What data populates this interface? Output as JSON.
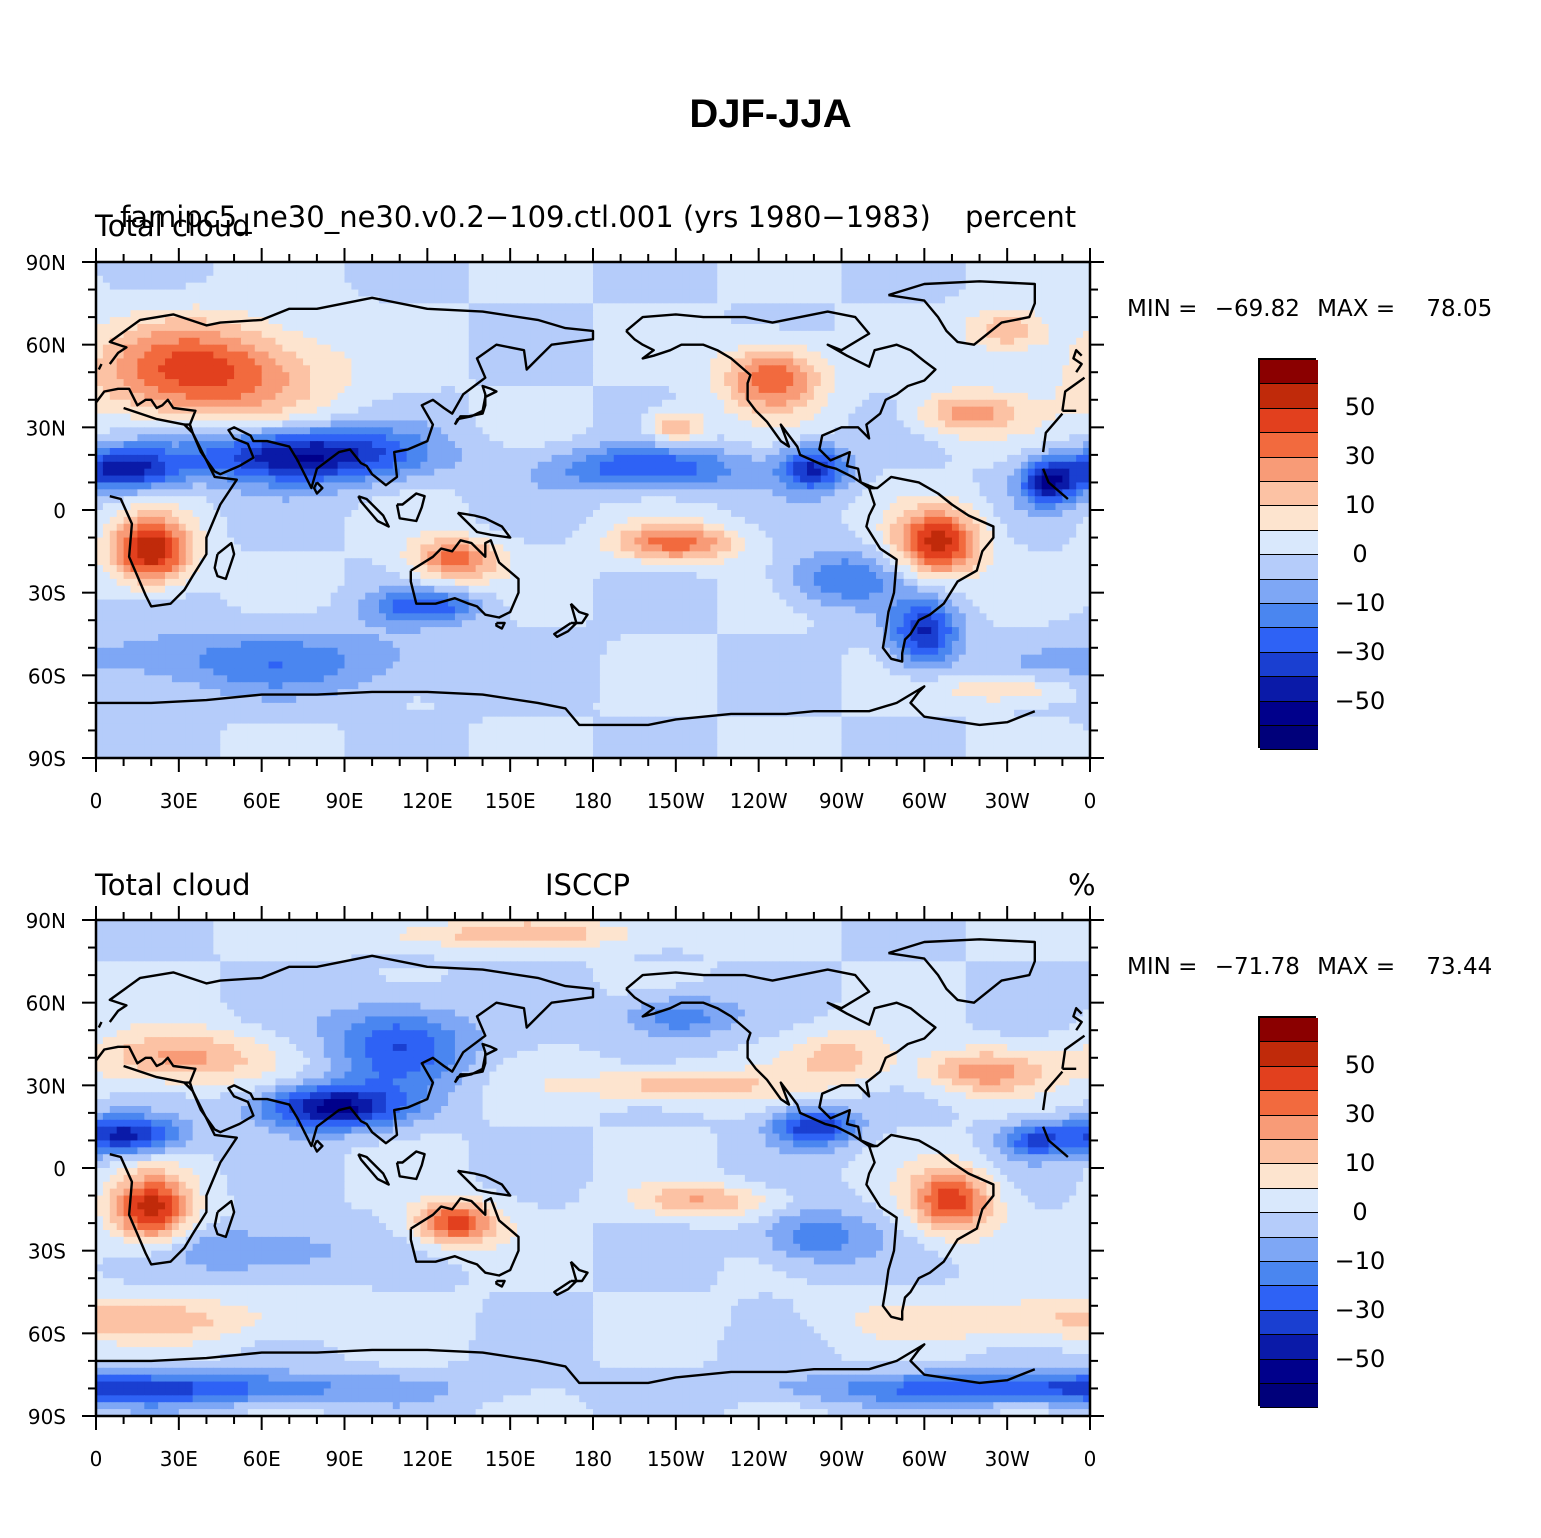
{
  "title": "DJF-JJA",
  "palette": [
    "#00008b",
    "#0a1aa8",
    "#1a3fd1",
    "#2e62f5",
    "#4a86f0",
    "#7ea7f5",
    "#b5ccfa",
    "#d9e8fc",
    "#fde4cf",
    "#fcc2a4",
    "#f89b77",
    "#f26a3e",
    "#e2401e",
    "#c02a0a",
    "#8b0000"
  ],
  "panels": [
    {
      "id": "model",
      "left_label": "Total cloud",
      "center_label": "famipc5_ne30_ne30.v0.2−109.ctl.001 (yrs 1980−1983)",
      "right_label": "percent",
      "min_label": "MIN =",
      "min_value": "−69.82",
      "max_label": "MAX =",
      "max_value": "78.05",
      "colorbar_labels": [
        "50",
        "30",
        "10",
        "0",
        "−10",
        "−30",
        "−50"
      ],
      "field": [
        {
          "lon": 40,
          "lat": 50,
          "amp": 55,
          "rx": 40,
          "ry": 18
        },
        {
          "lon": 20,
          "lat": -15,
          "amp": 70,
          "rx": 14,
          "ry": 12
        },
        {
          "lon": -55,
          "lat": -12,
          "amp": 65,
          "rx": 15,
          "ry": 12
        },
        {
          "lon": -115,
          "lat": 48,
          "amp": 50,
          "rx": 18,
          "ry": 12
        },
        {
          "lon": -45,
          "lat": 35,
          "amp": 35,
          "rx": 18,
          "ry": 8
        },
        {
          "lon": -150,
          "lat": -12,
          "amp": 45,
          "rx": 22,
          "ry": 7
        },
        {
          "lon": 130,
          "lat": -18,
          "amp": 45,
          "rx": 16,
          "ry": 8
        },
        {
          "lon": -150,
          "lat": 30,
          "amp": 35,
          "rx": 10,
          "ry": 6
        },
        {
          "lon": -30,
          "lat": 65,
          "amp": 30,
          "rx": 15,
          "ry": 8
        },
        {
          "lon": -30,
          "lat": -65,
          "amp": 25,
          "rx": 22,
          "ry": 5
        },
        {
          "lon": 75,
          "lat": 20,
          "amp": -65,
          "rx": 40,
          "ry": 10
        },
        {
          "lon": 10,
          "lat": 15,
          "amp": -55,
          "rx": 20,
          "ry": 8
        },
        {
          "lon": -160,
          "lat": 15,
          "amp": -40,
          "rx": 35,
          "ry": 8
        },
        {
          "lon": -100,
          "lat": 15,
          "amp": -50,
          "rx": 12,
          "ry": 8
        },
        {
          "lon": -15,
          "lat": 10,
          "amp": -55,
          "rx": 10,
          "ry": 8
        },
        {
          "lon": -60,
          "lat": -45,
          "amp": -50,
          "rx": 12,
          "ry": 12
        },
        {
          "lon": 60,
          "lat": -55,
          "amp": -25,
          "rx": 70,
          "ry": 12
        },
        {
          "lon": -90,
          "lat": -25,
          "amp": -30,
          "rx": 20,
          "ry": 10
        },
        {
          "lon": 120,
          "lat": -35,
          "amp": -35,
          "rx": 20,
          "ry": 6
        }
      ]
    },
    {
      "id": "obs",
      "left_label": "Total cloud",
      "center_label": "ISCCP",
      "right_label": "%",
      "min_label": "MIN =",
      "min_value": "−71.78",
      "max_label": "MAX =",
      "max_value": "73.44",
      "colorbar_labels": [
        "50",
        "30",
        "10",
        "0",
        "−10",
        "−30",
        "−50"
      ],
      "field": [
        {
          "lon": 20,
          "lat": -15,
          "amp": 65,
          "rx": 14,
          "ry": 12
        },
        {
          "lon": -50,
          "lat": -12,
          "amp": 55,
          "rx": 15,
          "ry": 12
        },
        {
          "lon": 130,
          "lat": -20,
          "amp": 55,
          "rx": 15,
          "ry": 8
        },
        {
          "lon": 30,
          "lat": 40,
          "amp": 35,
          "rx": 30,
          "ry": 10
        },
        {
          "lon": -40,
          "lat": 35,
          "amp": 35,
          "rx": 22,
          "ry": 8
        },
        {
          "lon": -150,
          "lat": 30,
          "amp": 30,
          "rx": 35,
          "ry": 6
        },
        {
          "lon": -140,
          "lat": -12,
          "amp": 30,
          "rx": 25,
          "ry": 6
        },
        {
          "lon": -90,
          "lat": 40,
          "amp": 25,
          "rx": 20,
          "ry": 10
        },
        {
          "lon": 0,
          "lat": -55,
          "amp": 25,
          "rx": 80,
          "ry": 8
        },
        {
          "lon": 150,
          "lat": 85,
          "amp": 25,
          "rx": 60,
          "ry": 5
        },
        {
          "lon": 85,
          "lat": 22,
          "amp": -65,
          "rx": 25,
          "ry": 8
        },
        {
          "lon": 110,
          "lat": 45,
          "amp": -40,
          "rx": 25,
          "ry": 15
        },
        {
          "lon": 10,
          "lat": 12,
          "amp": -55,
          "rx": 20,
          "ry": 7
        },
        {
          "lon": -100,
          "lat": 15,
          "amp": -50,
          "rx": 15,
          "ry": 7
        },
        {
          "lon": -20,
          "lat": 10,
          "amp": -35,
          "rx": 12,
          "ry": 6
        },
        {
          "lon": 0,
          "lat": -80,
          "amp": -45,
          "rx": 100,
          "ry": 6
        },
        {
          "lon": -100,
          "lat": -25,
          "amp": -30,
          "rx": 20,
          "ry": 10
        },
        {
          "lon": 60,
          "lat": -30,
          "amp": -25,
          "rx": 30,
          "ry": 8
        },
        {
          "lon": -150,
          "lat": 55,
          "amp": -30,
          "rx": 20,
          "ry": 8
        }
      ]
    }
  ],
  "x_tick_labels": [
    "0",
    "30E",
    "60E",
    "90E",
    "120E",
    "150E",
    "180",
    "150W",
    "120W",
    "90W",
    "60W",
    "30W",
    "0"
  ],
  "y_tick_labels": [
    "90N",
    "60N",
    "30N",
    "0",
    "30S",
    "60S",
    "90S"
  ]
}
